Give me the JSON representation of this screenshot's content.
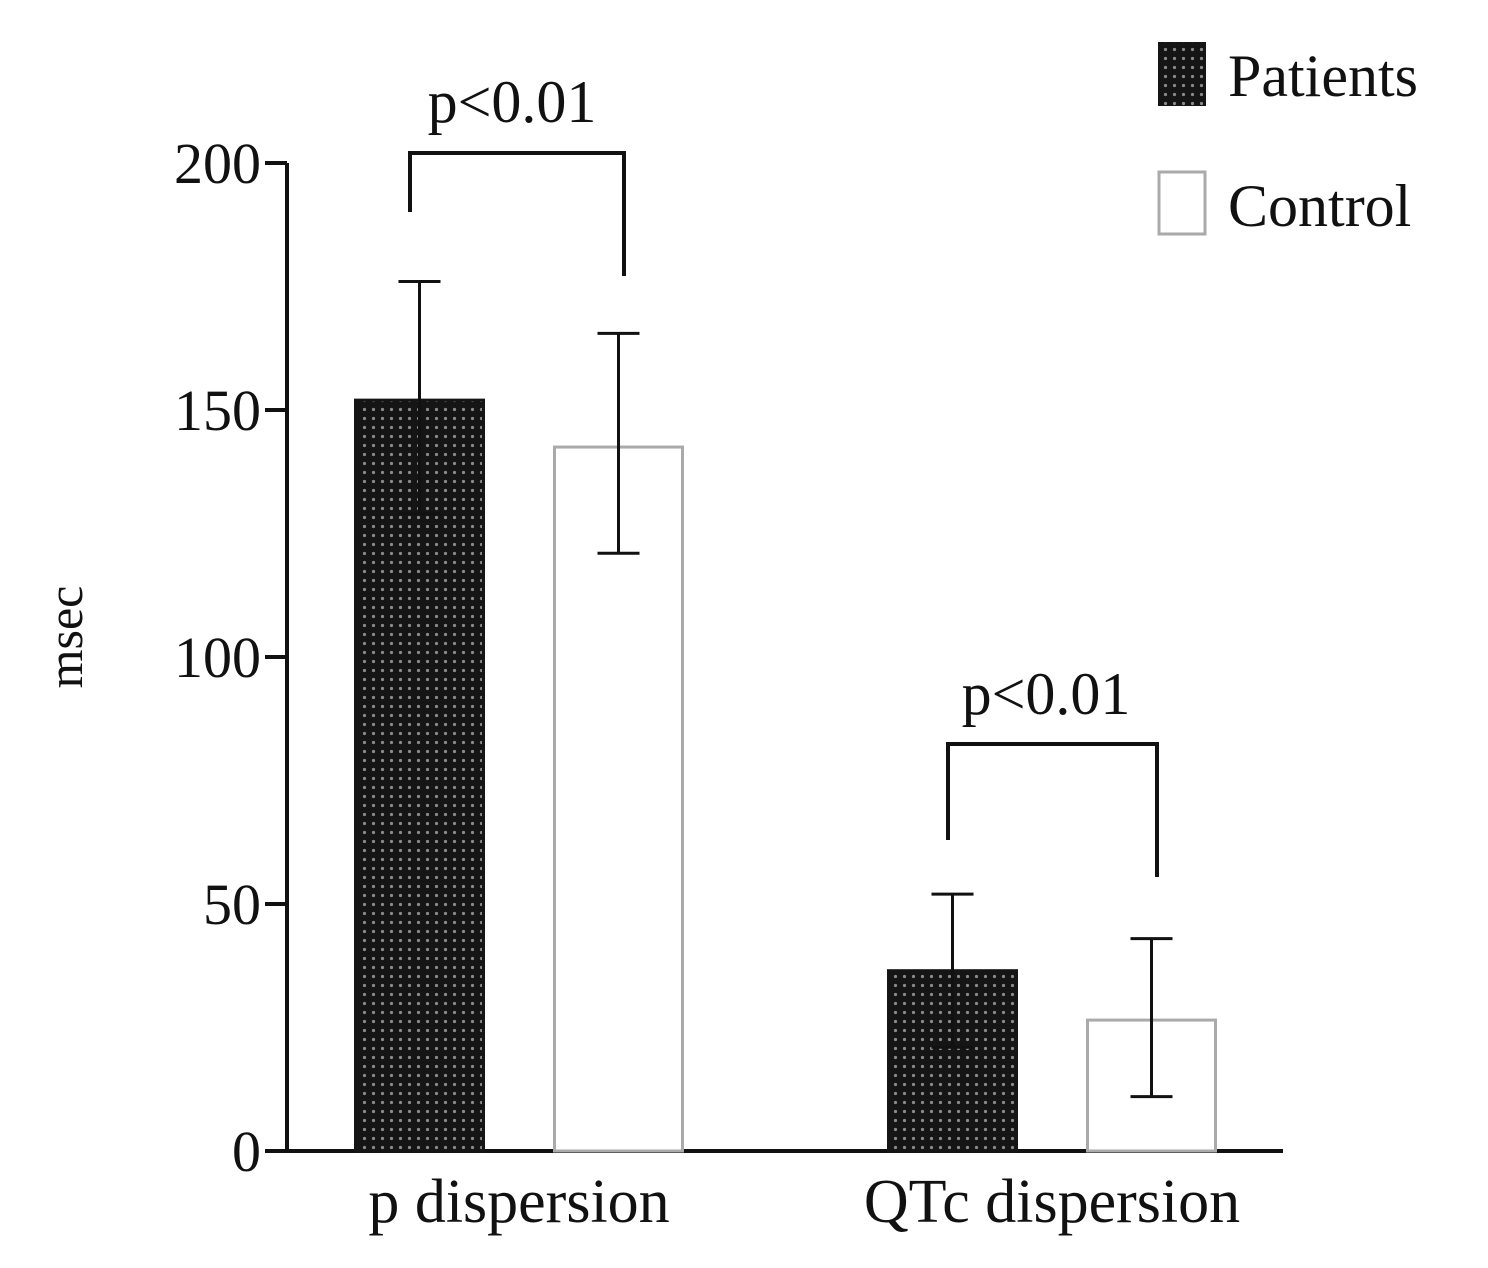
{
  "chart_data": {
    "type": "bar",
    "title": "",
    "xlabel": "",
    "ylabel": "msec",
    "ylim": [
      0,
      200
    ],
    "yticks": [
      0,
      50,
      100,
      150,
      200
    ],
    "grid": false,
    "legend_position": "top-right",
    "categories": [
      "p dispersion",
      "QTc dispersion"
    ],
    "series": [
      {
        "name": "Patients",
        "style": "dark-dotted",
        "values": [
          152,
          36.5
        ],
        "error_low": [
          129,
          21
        ],
        "error_high": [
          176,
          52
        ]
      },
      {
        "name": "Control",
        "style": "outline",
        "values": [
          142.5,
          26.5
        ],
        "error_low": [
          121,
          11
        ],
        "error_high": [
          165.5,
          43
        ]
      }
    ],
    "annotations": [
      {
        "text": "p<0.01",
        "category_index": 0
      },
      {
        "text": "p<0.01",
        "category_index": 1
      }
    ]
  },
  "colors": {
    "patients_fill": "#151515",
    "patients_dot": "#8a8a8a",
    "control_stroke": "#aaaaaa",
    "axis": "#111111"
  }
}
